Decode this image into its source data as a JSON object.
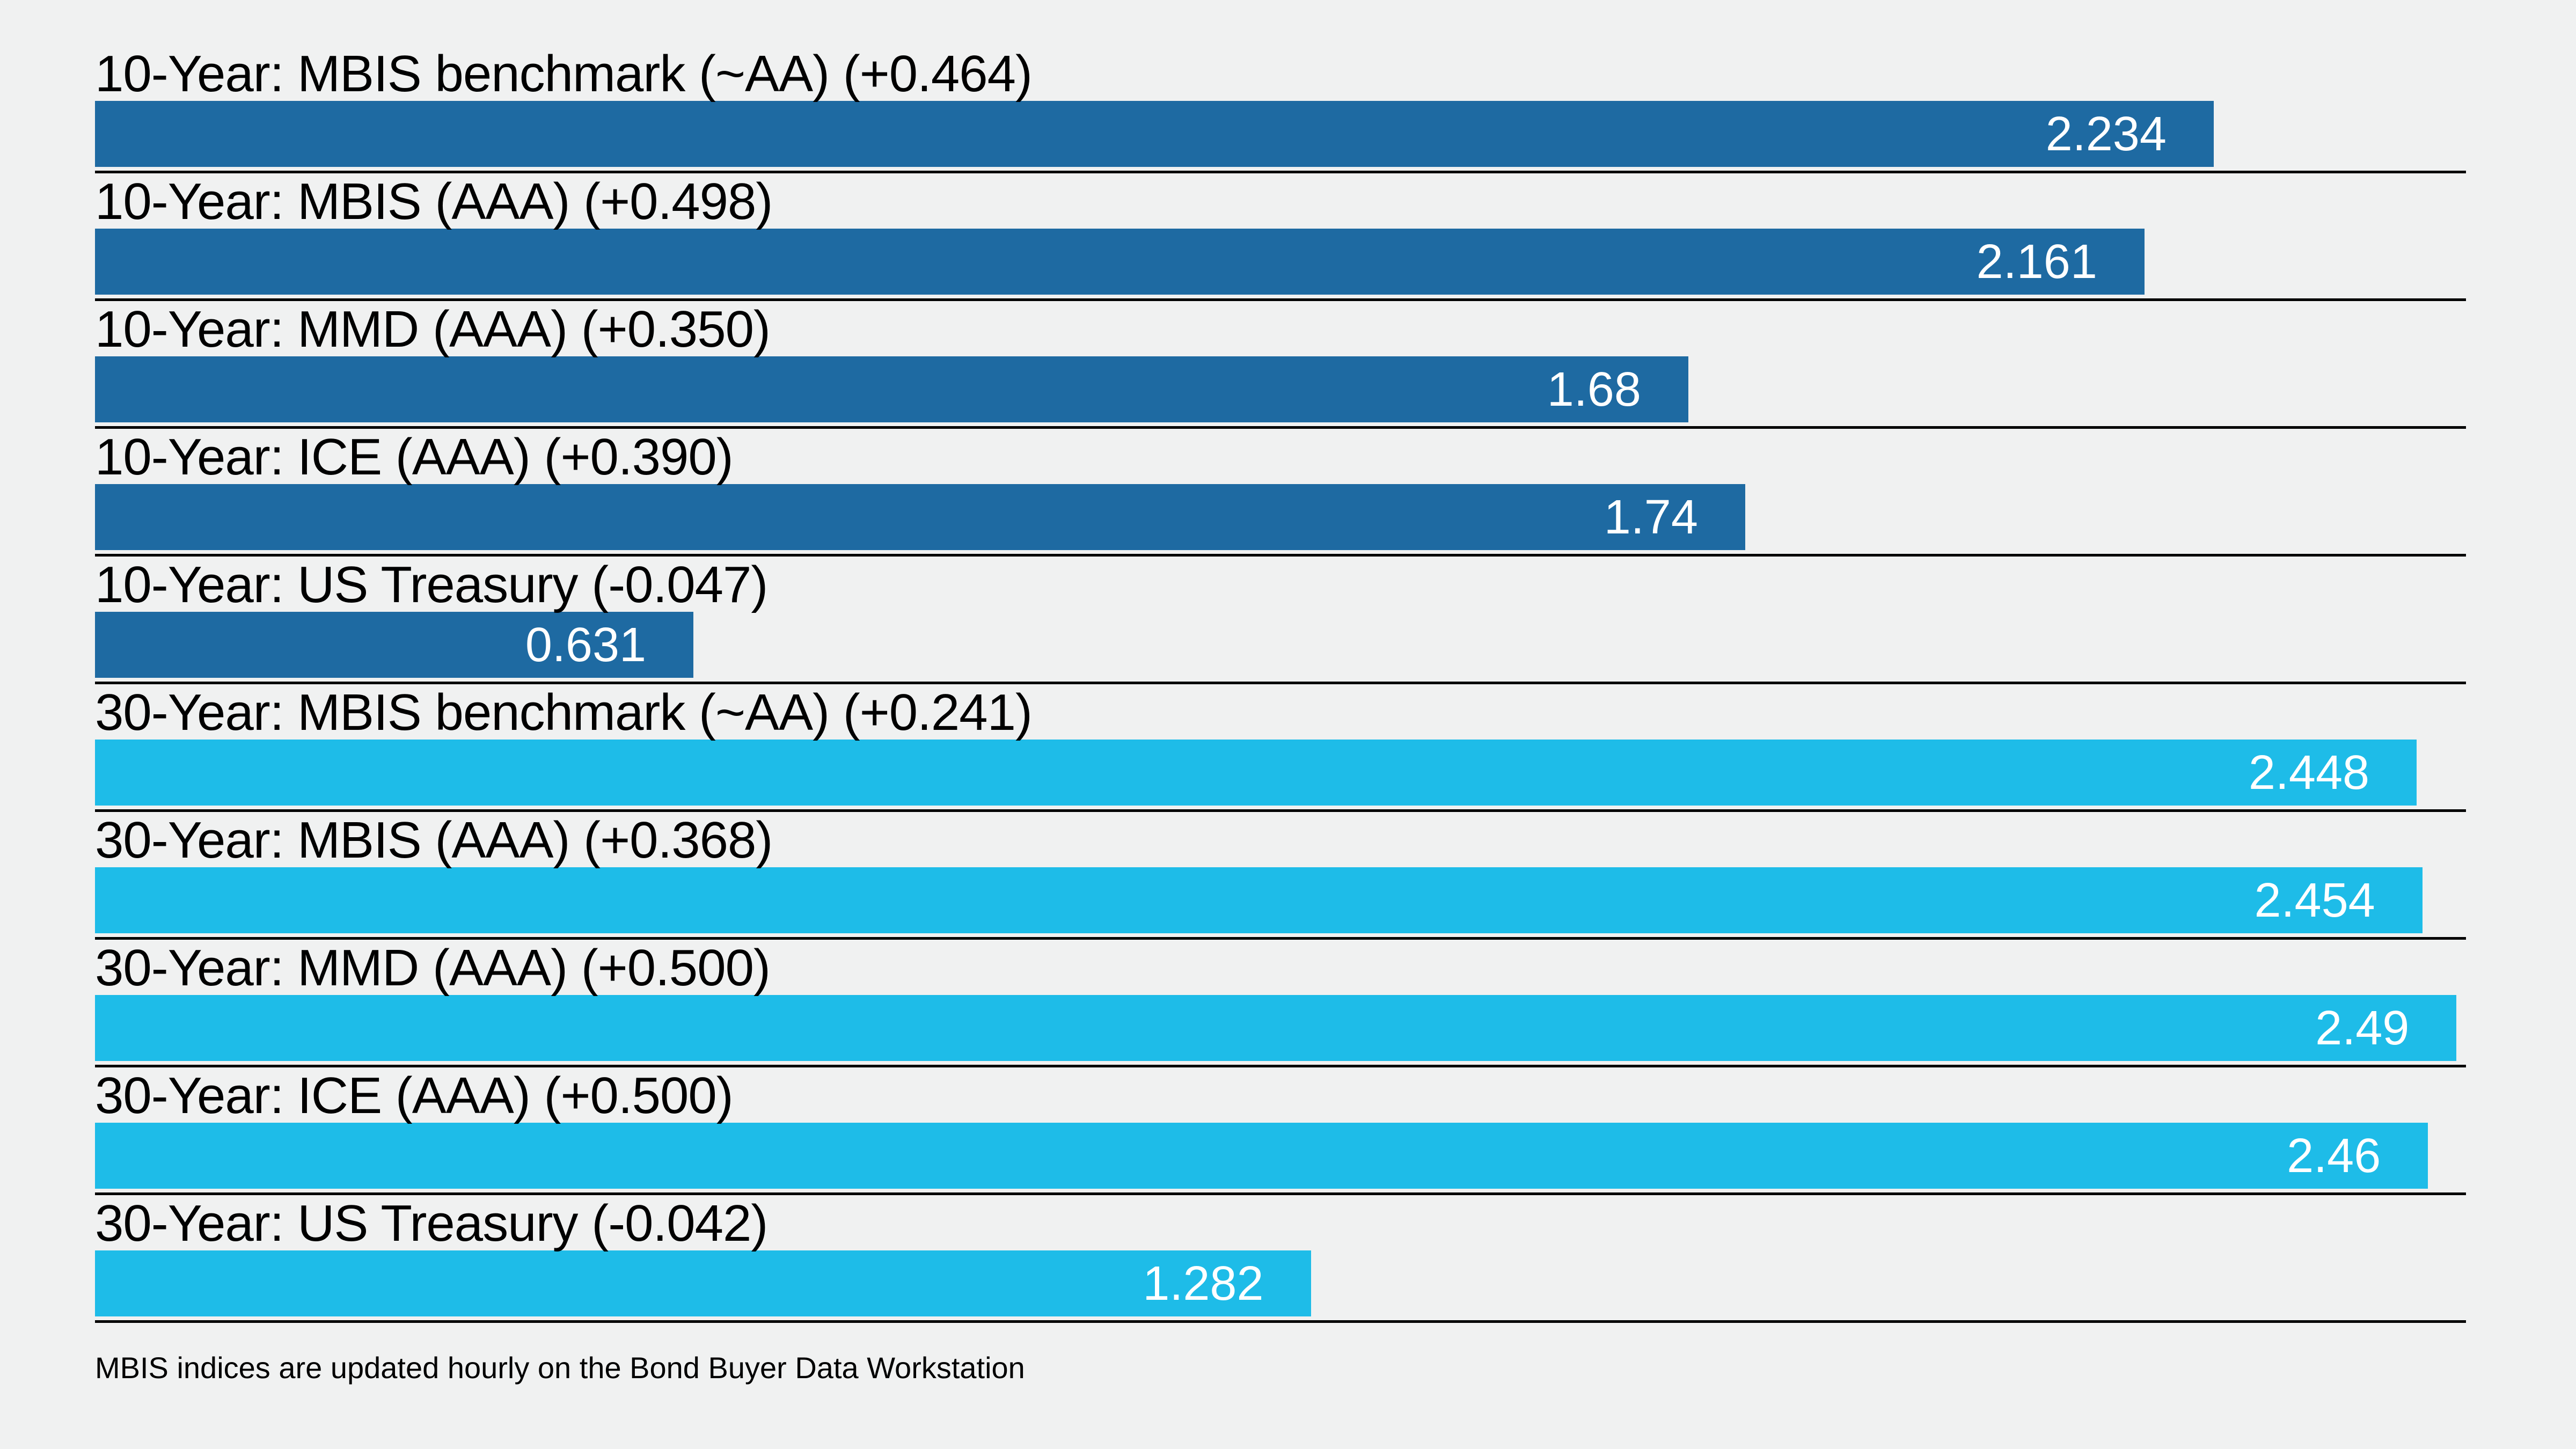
{
  "chart_data": {
    "type": "bar",
    "orientation": "horizontal",
    "title": "",
    "xlim": [
      0,
      2.5
    ],
    "grid": false,
    "legend": "none",
    "bars": [
      {
        "label": "10-Year: MBIS benchmark (~AA) (+0.464)",
        "value": 2.234,
        "value_label": "2.234",
        "group": "10-year",
        "change": "+0.464"
      },
      {
        "label": "10-Year: MBIS (AAA) (+0.498)",
        "value": 2.161,
        "value_label": "2.161",
        "group": "10-year",
        "change": "+0.498"
      },
      {
        "label": "10-Year: MMD (AAA) (+0.350)",
        "value": 1.68,
        "value_label": "1.68",
        "group": "10-year",
        "change": "+0.350"
      },
      {
        "label": "10-Year: ICE (AAA) (+0.390)",
        "value": 1.74,
        "value_label": "1.74",
        "group": "10-year",
        "change": "+0.390"
      },
      {
        "label": "10-Year: US Treasury (-0.047)",
        "value": 0.631,
        "value_label": "0.631",
        "group": "10-year",
        "change": "-0.047"
      },
      {
        "label": "30-Year: MBIS benchmark (~AA) (+0.241)",
        "value": 2.448,
        "value_label": "2.448",
        "group": "30-year",
        "change": "+0.241"
      },
      {
        "label": "30-Year: MBIS (AAA) (+0.368)",
        "value": 2.454,
        "value_label": "2.454",
        "group": "30-year",
        "change": "+0.368"
      },
      {
        "label": "30-Year: MMD (AAA) (+0.500)",
        "value": 2.49,
        "value_label": "2.49",
        "group": "30-year",
        "change": "+0.500"
      },
      {
        "label": "30-Year: ICE (AAA) (+0.500)",
        "value": 2.46,
        "value_label": "2.46",
        "group": "30-year",
        "change": "+0.500"
      },
      {
        "label": "30-Year: US Treasury (-0.042)",
        "value": 1.282,
        "value_label": "1.282",
        "group": "30-year",
        "change": "-0.042"
      }
    ],
    "colors": {
      "ten_year_bar": "#1e6aa2",
      "thirty_year_bar": "#1ebce8",
      "background": "#f0f1f1",
      "separator": "#000000",
      "label_text": "#000000",
      "value_text": "#ffffff"
    },
    "footnote": "MBIS indices are updated hourly on the Bond Buyer Data Workstation"
  }
}
